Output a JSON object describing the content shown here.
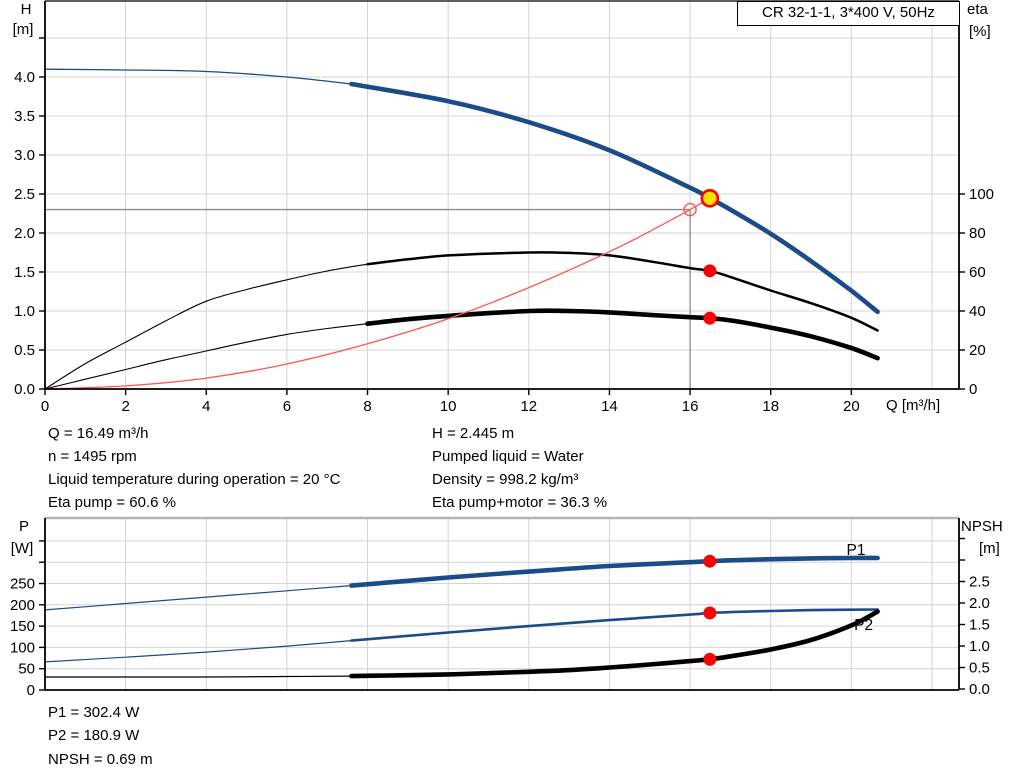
{
  "title_box": "CR 32-1-1, 3*400 V, 50Hz",
  "colors": {
    "blue": "#1b4c8a",
    "black": "#000000",
    "red": "#ff0000",
    "red_line": "#ff5555",
    "yellow": "#ffdf00",
    "grid": "#d4d4d4",
    "crosshair": "#8c8c8c",
    "gray_border": "#b4b4b4"
  },
  "axis_titles": {
    "h": "H",
    "h_unit": "[m]",
    "eta": "eta",
    "eta_unit": "[%]",
    "q": "Q [m³/h]",
    "p": "P",
    "p_unit": "[W]",
    "npsh": "NPSH",
    "npsh_unit": "[m]"
  },
  "info_left": [
    "Q = 16.49 m³/h",
    "n = 1495 rpm",
    "Liquid temperature during operation = 20 °C",
    "Eta pump = 60.6 %"
  ],
  "info_right": [
    "H = 2.445 m",
    "Pumped liquid = Water",
    "Density = 998.2 kg/m³",
    "Eta pump+motor = 36.3 %"
  ],
  "footer": [
    "P1 = 302.4 W",
    "P2 = 180.9 W",
    "NPSH = 0.69 m"
  ],
  "chart_data": [
    {
      "id": "hq-eta-chart",
      "type": "line",
      "title": "CR 32-1-1, 3*400 V, 50Hz",
      "xlabel": "Q [m³/h]",
      "x_axis": {
        "min": 0,
        "max": 22.67,
        "grid": [
          2,
          4,
          6,
          8,
          10,
          12,
          14,
          16,
          18,
          20,
          22
        ],
        "ticks": [
          {
            "v": 0,
            "t": "0"
          },
          {
            "v": 2,
            "t": "2"
          },
          {
            "v": 4,
            "t": "4"
          },
          {
            "v": 6,
            "t": "6"
          },
          {
            "v": 8,
            "t": "8"
          },
          {
            "v": 10,
            "t": "10"
          },
          {
            "v": 12,
            "t": "12"
          },
          {
            "v": 14,
            "t": "14"
          },
          {
            "v": 16,
            "t": "16"
          },
          {
            "v": 18,
            "t": "18"
          },
          {
            "v": 20,
            "t": "20"
          }
        ]
      },
      "y_left": {
        "label": "H [m]",
        "min": 0,
        "max": 4.974,
        "grid": [
          0.5,
          1.0,
          1.5,
          2.0,
          2.5,
          3.0,
          3.5,
          4.0,
          4.5
        ],
        "ticks": [
          {
            "v": 0,
            "t": "0.0"
          },
          {
            "v": 0.5,
            "t": "0.5"
          },
          {
            "v": 1.0,
            "t": "1.0"
          },
          {
            "v": 1.5,
            "t": "1.5"
          },
          {
            "v": 2.0,
            "t": "2.0"
          },
          {
            "v": 2.5,
            "t": "2.5"
          },
          {
            "v": 3.0,
            "t": "3.0"
          },
          {
            "v": 3.5,
            "t": "3.5"
          },
          {
            "v": 4.0,
            "t": "4.0"
          },
          {
            "v": 4.5,
            "t": ""
          }
        ]
      },
      "y_right": {
        "label": "eta [%]",
        "min": 0,
        "max": 198.97,
        "ticks": [
          {
            "v": 0,
            "t": "0"
          },
          {
            "v": 20,
            "t": "20"
          },
          {
            "v": 40,
            "t": "40"
          },
          {
            "v": 60,
            "t": "60"
          },
          {
            "v": 80,
            "t": "80"
          },
          {
            "v": 100,
            "t": "100"
          }
        ]
      },
      "crosshair": {
        "q": 16.0,
        "h": 2.3
      },
      "series": [
        {
          "name": "eta-pump-curve",
          "legend": "Eta pump",
          "axis": "right",
          "color": "black",
          "thin_width": 1.1,
          "thick_width": 2.5,
          "thick_from": 8,
          "points": [
            [
              0,
              0
            ],
            [
              1,
              13
            ],
            [
              2,
              24
            ],
            [
              3,
              35
            ],
            [
              4,
              45
            ],
            [
              5,
              51
            ],
            [
              6,
              56
            ],
            [
              7,
              60.5
            ],
            [
              8,
              64
            ],
            [
              9,
              66.5
            ],
            [
              10,
              68.5
            ],
            [
              12,
              70
            ],
            [
              13,
              69.8
            ],
            [
              14,
              68.5
            ],
            [
              15,
              65.5
            ],
            [
              16,
              62
            ],
            [
              16.49,
              60.6
            ],
            [
              17,
              57.5
            ],
            [
              18,
              50.5
            ],
            [
              19,
              44
            ],
            [
              20,
              36.5
            ],
            [
              20.65,
              30
            ]
          ]
        },
        {
          "name": "eta-pump-motor-curve",
          "legend": "Eta pump+motor",
          "axis": "right",
          "color": "black",
          "thin_width": 1.1,
          "thick_width": 4.6,
          "thick_from": 8,
          "points": [
            [
              0,
              0
            ],
            [
              1,
              5
            ],
            [
              2,
              10
            ],
            [
              3,
              15
            ],
            [
              4,
              19.5
            ],
            [
              5,
              24
            ],
            [
              6,
              28
            ],
            [
              7,
              31
            ],
            [
              8,
              33.5
            ],
            [
              9,
              35.8
            ],
            [
              10,
              37.5
            ],
            [
              12,
              40
            ],
            [
              13,
              40
            ],
            [
              14,
              39.3
            ],
            [
              15,
              38
            ],
            [
              16,
              36.8
            ],
            [
              16.49,
              36.3
            ],
            [
              17,
              35.2
            ],
            [
              18,
              31.5
            ],
            [
              19,
              27
            ],
            [
              20,
              21
            ],
            [
              20.65,
              15.8
            ]
          ]
        },
        {
          "name": "system-curve",
          "legend": "System curve",
          "axis": "left",
          "color": "red_line",
          "thin_width": 1.3,
          "points": [
            [
              0,
              0
            ],
            [
              2,
              0.04
            ],
            [
              4,
              0.14
            ],
            [
              6,
              0.32
            ],
            [
              8,
              0.58
            ],
            [
              10,
              0.9
            ],
            [
              12,
              1.3
            ],
            [
              14,
              1.76
            ],
            [
              15,
              2.02
            ],
            [
              16,
              2.3
            ],
            [
              16.49,
              2.445
            ]
          ]
        },
        {
          "name": "hq-curve",
          "legend": "H (pump curve)",
          "axis": "left",
          "color": "blue",
          "thin_width": 1.3,
          "thick_width": 4.6,
          "thick_from": 7.6,
          "points": [
            [
              0,
              4.1
            ],
            [
              2,
              4.09
            ],
            [
              4,
              4.07
            ],
            [
              6,
              4.0
            ],
            [
              7.6,
              3.91
            ],
            [
              10,
              3.69
            ],
            [
              12,
              3.42
            ],
            [
              14,
              3.06
            ],
            [
              16,
              2.58
            ],
            [
              16.49,
              2.445
            ],
            [
              17,
              2.3
            ],
            [
              18,
              1.99
            ],
            [
              19,
              1.64
            ],
            [
              20,
              1.26
            ],
            [
              20.65,
              0.99
            ]
          ]
        }
      ],
      "markers": [
        {
          "name": "eta-pump-point",
          "q": 16.49,
          "v": 60.6,
          "axis": "right",
          "r": 6.5,
          "fill": "red",
          "stroke": "none",
          "sw": 0,
          "interactable": false
        },
        {
          "name": "eta-pump-motor-point",
          "q": 16.49,
          "v": 36.3,
          "axis": "right",
          "r": 6.5,
          "fill": "red",
          "stroke": "none",
          "sw": 0,
          "interactable": false
        },
        {
          "name": "requested-duty-point",
          "q": 16.0,
          "v": 2.3,
          "axis": "left",
          "r": 6,
          "fill": "none",
          "stroke": "red_line",
          "sw": 1.4,
          "interactable": false
        },
        {
          "name": "duty-point",
          "q": 16.49,
          "v": 2.445,
          "axis": "left",
          "r": 8,
          "fill": "yellow",
          "stroke": "red",
          "sw": 2.6,
          "interactable": true
        }
      ],
      "annotations": []
    },
    {
      "id": "power-npsh-chart",
      "type": "line",
      "xlabel": "",
      "x_axis": {
        "min": 0,
        "max": 22.67,
        "grid": [
          2,
          4,
          6,
          8,
          10,
          12,
          14,
          16,
          18,
          20,
          22
        ],
        "ticks": []
      },
      "y_left": {
        "label": "P [W]",
        "min": 0,
        "max": 403.8,
        "grid": [
          50,
          100,
          150,
          200,
          250,
          300,
          350
        ],
        "ticks": [
          {
            "v": 0,
            "t": "0"
          },
          {
            "v": 50,
            "t": "50"
          },
          {
            "v": 100,
            "t": "100"
          },
          {
            "v": 150,
            "t": "150"
          },
          {
            "v": 200,
            "t": "200"
          },
          {
            "v": 250,
            "t": "250"
          },
          {
            "v": 300,
            "t": ""
          },
          {
            "v": 350,
            "t": ""
          }
        ]
      },
      "y_right": {
        "label": "NPSH [m]",
        "min": -0.023,
        "max": 3.977,
        "ticks": [
          {
            "v": 0,
            "t": "0.0"
          },
          {
            "v": 0.5,
            "t": "0.5"
          },
          {
            "v": 1.0,
            "t": "1.0"
          },
          {
            "v": 1.5,
            "t": "1.5"
          },
          {
            "v": 2.0,
            "t": "2.0"
          },
          {
            "v": 2.5,
            "t": "2.5"
          },
          {
            "v": 3.0,
            "t": ""
          },
          {
            "v": 3.5,
            "t": ""
          }
        ]
      },
      "series": [
        {
          "name": "p1-curve",
          "legend": "P1",
          "axis": "left",
          "color": "blue",
          "thin_width": 1.2,
          "thick_width": 4.6,
          "thick_from": 7.6,
          "points": [
            [
              0,
              188
            ],
            [
              2,
              203
            ],
            [
              4,
              218
            ],
            [
              6,
              233
            ],
            [
              7.6,
              245
            ],
            [
              10,
              264
            ],
            [
              12,
              278
            ],
            [
              14,
              291
            ],
            [
              16,
              300
            ],
            [
              16.49,
              302.4
            ],
            [
              17,
              304.5
            ],
            [
              18,
              307
            ],
            [
              19,
              309
            ],
            [
              20,
              310
            ],
            [
              20.65,
              310
            ]
          ]
        },
        {
          "name": "p2-curve",
          "legend": "P2",
          "axis": "left",
          "color": "blue",
          "thin_width": 1.2,
          "thick_width": 2.6,
          "thick_from": 7.6,
          "points": [
            [
              0,
              66
            ],
            [
              2,
              77
            ],
            [
              4,
              89
            ],
            [
              6,
              103
            ],
            [
              7.6,
              116
            ],
            [
              10,
              135
            ],
            [
              12,
              150
            ],
            [
              14,
              164
            ],
            [
              16,
              177
            ],
            [
              16.49,
              180.9
            ],
            [
              17,
              183
            ],
            [
              18,
              185.5
            ],
            [
              19,
              187.5
            ],
            [
              20,
              188.5
            ],
            [
              20.65,
              189
            ]
          ]
        },
        {
          "name": "npsh-curve",
          "legend": "NPSH",
          "axis": "right",
          "color": "black",
          "thin_width": 1.2,
          "thick_width": 4.6,
          "thick_from": 7.6,
          "points": [
            [
              0,
              0.28
            ],
            [
              2,
              0.28
            ],
            [
              4,
              0.28
            ],
            [
              6,
              0.29
            ],
            [
              7.6,
              0.3
            ],
            [
              10,
              0.34
            ],
            [
              12,
              0.4
            ],
            [
              13,
              0.44
            ],
            [
              14,
              0.5
            ],
            [
              15,
              0.57
            ],
            [
              16,
              0.65
            ],
            [
              16.49,
              0.69
            ],
            [
              17,
              0.76
            ],
            [
              18,
              0.92
            ],
            [
              19,
              1.14
            ],
            [
              20,
              1.48
            ],
            [
              20.65,
              1.8
            ]
          ]
        }
      ],
      "markers": [
        {
          "name": "p1-point",
          "q": 16.49,
          "v": 302.4,
          "axis": "left",
          "r": 6.5,
          "fill": "red",
          "stroke": "none",
          "sw": 0,
          "interactable": false
        },
        {
          "name": "p2-point",
          "q": 16.49,
          "v": 180.9,
          "axis": "left",
          "r": 6.5,
          "fill": "red",
          "stroke": "none",
          "sw": 0,
          "interactable": false
        },
        {
          "name": "npsh-point",
          "q": 16.49,
          "v": 0.69,
          "axis": "right",
          "r": 6.5,
          "fill": "red",
          "stroke": "none",
          "sw": 0,
          "interactable": false
        }
      ],
      "annotations": [
        {
          "name": "p1-curve-label",
          "text": "P1",
          "q": 19.88,
          "v": 317,
          "axis": "left",
          "color": "blue"
        },
        {
          "name": "p2-curve-label",
          "text": "P2",
          "q": 20.07,
          "v": 141,
          "axis": "left",
          "color": "blue"
        }
      ]
    }
  ]
}
